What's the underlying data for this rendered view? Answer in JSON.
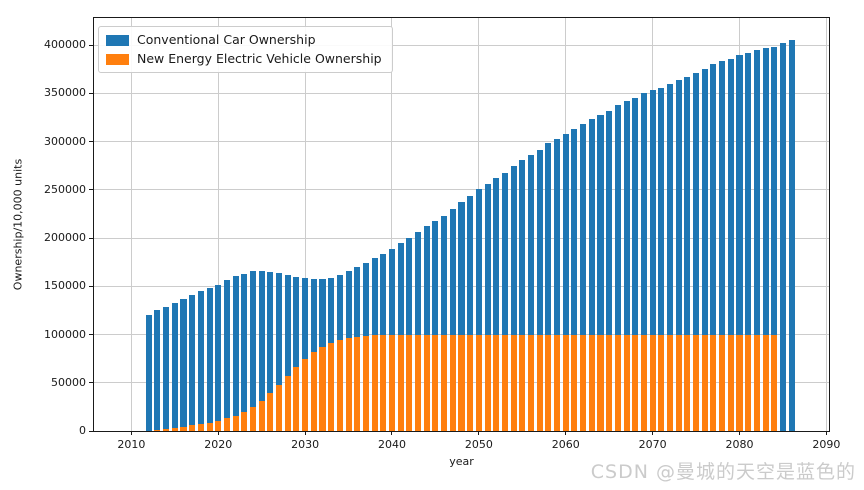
{
  "watermark": {
    "text": "CSDN @曼城的天空是蓝色的"
  },
  "chart_data": {
    "type": "bar",
    "title": "",
    "xlabel": "year",
    "ylabel": "Ownership/10,000 units",
    "xlim": [
      2005.7,
      2090.3
    ],
    "ylim": [
      0,
      428000
    ],
    "x_ticks": [
      2010,
      2020,
      2030,
      2040,
      2050,
      2060,
      2070,
      2080,
      2090
    ],
    "y_ticks": [
      0,
      50000,
      100000,
      150000,
      200000,
      250000,
      300000,
      350000,
      400000
    ],
    "grid": true,
    "legend_position": "upper left",
    "bar_mode": "overlay",
    "bar_width_years": 0.7,
    "series": [
      {
        "name": "Conventional Car Ownership",
        "color": "#1f77b4",
        "x": [
          2012,
          2013,
          2014,
          2015,
          2016,
          2017,
          2018,
          2019,
          2020,
          2021,
          2022,
          2023,
          2024,
          2025,
          2026,
          2027,
          2028,
          2029,
          2030,
          2031,
          2032,
          2033,
          2034,
          2035,
          2036,
          2037,
          2038,
          2039,
          2040,
          2041,
          2042,
          2043,
          2044,
          2045,
          2046,
          2047,
          2048,
          2049,
          2050,
          2051,
          2052,
          2053,
          2054,
          2055,
          2056,
          2057,
          2058,
          2059,
          2060,
          2061,
          2062,
          2063,
          2064,
          2065,
          2066,
          2067,
          2068,
          2069,
          2070,
          2071,
          2072,
          2073,
          2074,
          2075,
          2076,
          2077,
          2078,
          2079,
          2080,
          2081,
          2082,
          2083,
          2084,
          2085,
          2086
        ],
        "values": [
          120000,
          125000,
          129000,
          133000,
          137000,
          141000,
          145000,
          148500,
          151500,
          156500,
          160500,
          163000,
          166000,
          166000,
          165000,
          163500,
          162000,
          160000,
          158500,
          157500,
          157500,
          159000,
          162000,
          166000,
          170000,
          174500,
          179000,
          183500,
          189000,
          194500,
          200500,
          206000,
          212500,
          217500,
          223000,
          230000,
          237000,
          244000,
          251000,
          256500,
          262000,
          267500,
          274500,
          280500,
          286000,
          291500,
          298000,
          302500,
          308000,
          313000,
          318000,
          323500,
          328000,
          332000,
          337500,
          341500,
          345500,
          350000,
          353000,
          355500,
          359500,
          363500,
          367000,
          371500,
          375500,
          380000,
          383500,
          385500,
          389500,
          392000,
          394500,
          396500,
          398000,
          402000,
          405000
        ]
      },
      {
        "name": "New Energy Electric Vehicle Ownership",
        "color": "#ff7f0e",
        "x": [
          2013,
          2014,
          2015,
          2016,
          2017,
          2018,
          2019,
          2020,
          2021,
          2022,
          2023,
          2024,
          2025,
          2026,
          2027,
          2028,
          2029,
          2030,
          2031,
          2032,
          2033,
          2034,
          2035,
          2036,
          2037,
          2038,
          2039,
          2040,
          2041,
          2042,
          2043,
          2044,
          2045,
          2046,
          2047,
          2048,
          2049,
          2050,
          2051,
          2052,
          2053,
          2054,
          2055,
          2056,
          2057,
          2058,
          2059,
          2060,
          2061,
          2062,
          2063,
          2064,
          2065,
          2066,
          2067,
          2068,
          2069,
          2070,
          2071,
          2072,
          2073,
          2074,
          2075,
          2076,
          2077,
          2078,
          2079,
          2080,
          2081,
          2082,
          2083,
          2084
        ],
        "values": [
          1200,
          2000,
          3000,
          4300,
          5800,
          7200,
          8800,
          10500,
          13000,
          16000,
          20000,
          25000,
          31000,
          39000,
          48000,
          57500,
          66500,
          75000,
          81500,
          87000,
          91000,
          94000,
          96000,
          97500,
          98500,
          99500,
          100000,
          100000,
          100000,
          100000,
          100000,
          100000,
          100000,
          100000,
          100000,
          100000,
          100000,
          100000,
          100000,
          100000,
          100000,
          100000,
          100000,
          100000,
          100000,
          100000,
          100000,
          100000,
          100000,
          100000,
          100000,
          100000,
          100000,
          100000,
          100000,
          100000,
          100000,
          100000,
          100000,
          100000,
          100000,
          100000,
          100000,
          100000,
          100000,
          100000,
          100000,
          100000,
          100000,
          100000,
          100000,
          100000
        ]
      }
    ]
  }
}
